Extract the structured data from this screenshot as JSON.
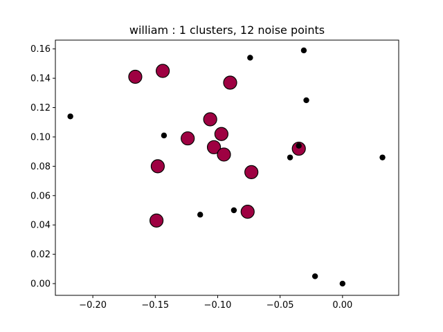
{
  "chart_data": {
    "type": "scatter",
    "title": "william : 1 clusters, 12 noise points",
    "xlabel": "",
    "ylabel": "",
    "xlim": [
      -0.23,
      0.045
    ],
    "ylim": [
      -0.008,
      0.166
    ],
    "grid": false,
    "x_ticks": [
      -0.2,
      -0.15,
      -0.1,
      -0.05,
      0.0
    ],
    "x_tick_labels": [
      "−0.20",
      "−0.15",
      "−0.10",
      "−0.05",
      "0.00"
    ],
    "y_ticks": [
      0.0,
      0.02,
      0.04,
      0.06,
      0.08,
      0.1,
      0.12,
      0.14,
      0.16
    ],
    "y_tick_labels": [
      "0.00",
      "0.02",
      "0.04",
      "0.06",
      "0.08",
      "0.10",
      "0.12",
      "0.14",
      "0.16"
    ],
    "series": [
      {
        "role": "cluster",
        "color": "#9e0142",
        "edge_color": "#000000",
        "marker": "large-circle",
        "points": [
          {
            "x": -0.166,
            "y": 0.141
          },
          {
            "x": -0.144,
            "y": 0.145
          },
          {
            "x": -0.09,
            "y": 0.137
          },
          {
            "x": -0.106,
            "y": 0.112
          },
          {
            "x": -0.097,
            "y": 0.102
          },
          {
            "x": -0.124,
            "y": 0.099
          },
          {
            "x": -0.103,
            "y": 0.093
          },
          {
            "x": -0.095,
            "y": 0.088
          },
          {
            "x": -0.148,
            "y": 0.08
          },
          {
            "x": -0.073,
            "y": 0.076
          },
          {
            "x": -0.035,
            "y": 0.092
          },
          {
            "x": -0.076,
            "y": 0.049
          },
          {
            "x": -0.149,
            "y": 0.043
          }
        ]
      },
      {
        "role": "noise",
        "color": "#000000",
        "marker": "small-dot",
        "points": [
          {
            "x": -0.074,
            "y": 0.154
          },
          {
            "x": -0.031,
            "y": 0.159
          },
          {
            "x": -0.029,
            "y": 0.125
          },
          {
            "x": -0.218,
            "y": 0.114
          },
          {
            "x": -0.143,
            "y": 0.101
          },
          {
            "x": -0.035,
            "y": 0.094
          },
          {
            "x": -0.042,
            "y": 0.086
          },
          {
            "x": 0.032,
            "y": 0.086
          },
          {
            "x": -0.114,
            "y": 0.047
          },
          {
            "x": -0.087,
            "y": 0.05
          },
          {
            "x": -0.022,
            "y": 0.005
          },
          {
            "x": 0.0,
            "y": 0.0
          }
        ]
      }
    ]
  }
}
